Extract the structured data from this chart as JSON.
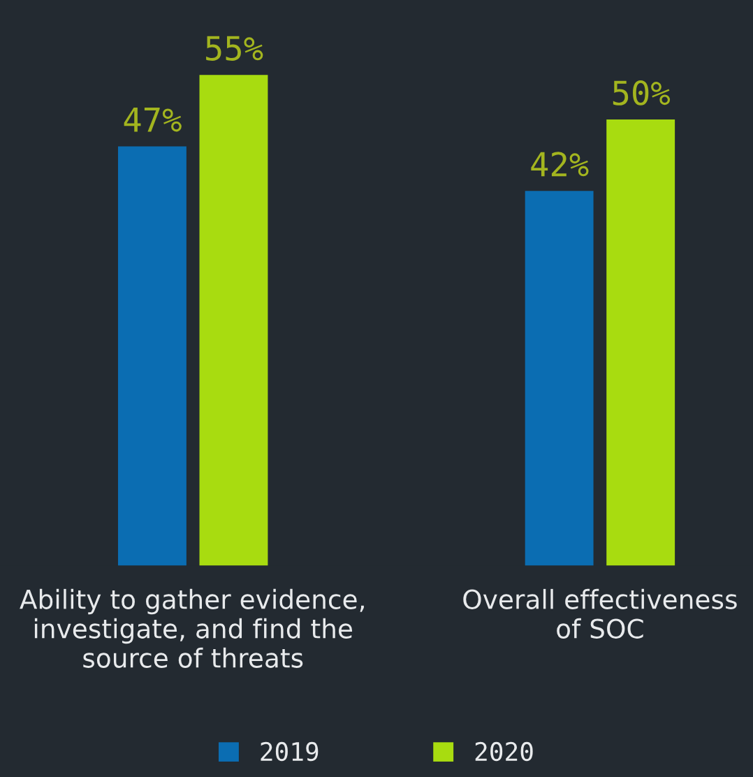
{
  "chart_data": {
    "type": "bar",
    "categories": [
      "Ability to gather evidence,\ninvestigate, and find the\nsource of threats",
      "Overall effectiveness\nof SOC"
    ],
    "series": [
      {
        "name": "2019",
        "color": "#0b6db2",
        "values": [
          47,
          42
        ],
        "value_labels": [
          "47%",
          "42%"
        ]
      },
      {
        "name": "2020",
        "color": "#a8dc10",
        "values": [
          55,
          50
        ],
        "value_labels": [
          "55%",
          "50%"
        ]
      }
    ],
    "legend": "bottom",
    "grid": false
  }
}
